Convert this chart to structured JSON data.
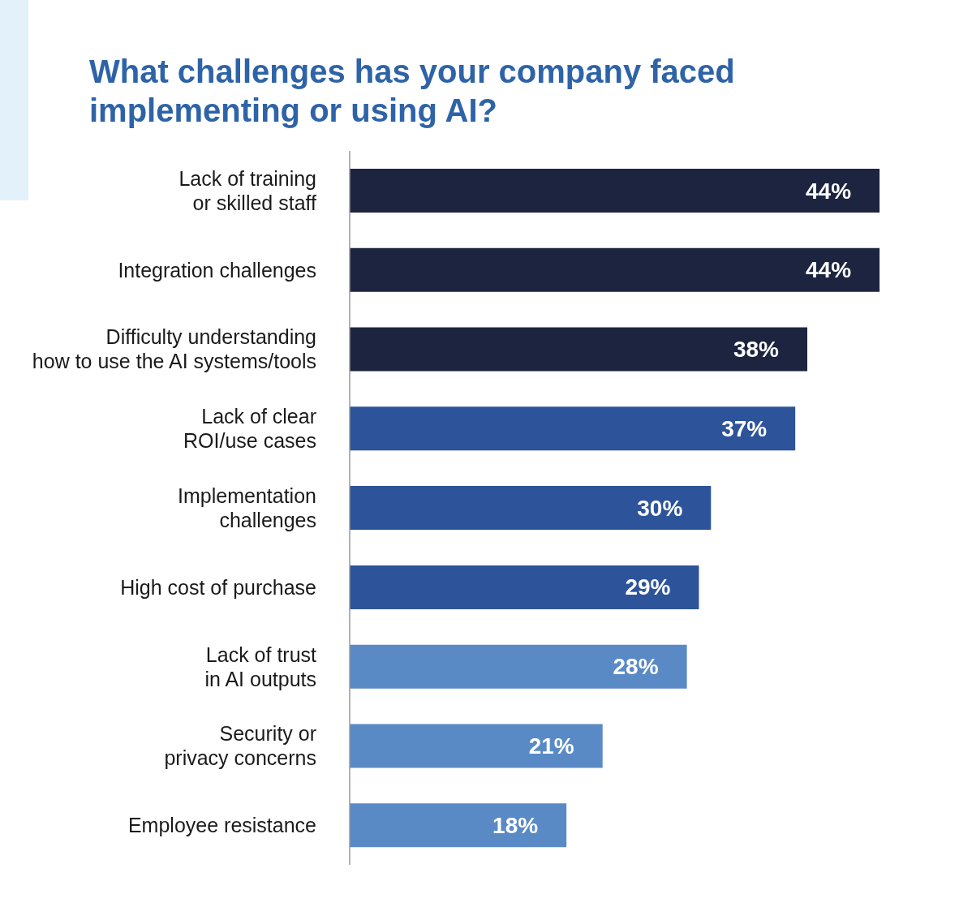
{
  "chart_data": {
    "type": "bar",
    "orientation": "horizontal",
    "title": "What challenges has your company faced\nimplementing or using AI?",
    "categories": [
      "Lack of training\nor skilled staff",
      "Integration challenges",
      "Difficulty understanding\nhow to use the AI systems/tools",
      "Lack of clear\nROI/use cases",
      "Implementation\nchallenges",
      "High cost of purchase",
      "Lack of trust\nin AI outputs",
      "Security or\nprivacy concerns",
      "Employee resistance"
    ],
    "values": [
      44,
      44,
      38,
      37,
      30,
      29,
      28,
      21,
      18
    ],
    "value_labels": [
      "44%",
      "44%",
      "38%",
      "37%",
      "30%",
      "29%",
      "28%",
      "21%",
      "18%"
    ],
    "colors": [
      "#1c2440",
      "#1c2440",
      "#1c2440",
      "#2d549a",
      "#2d549a",
      "#2d549a",
      "#5a8ac6",
      "#5a8ac6",
      "#5a8ac6"
    ]
  }
}
